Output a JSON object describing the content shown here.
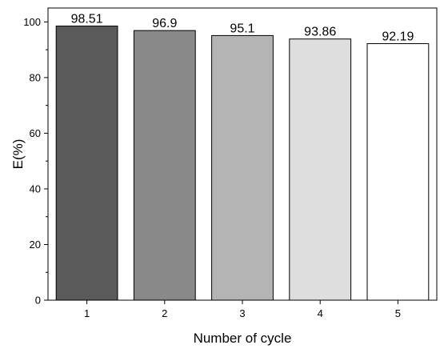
{
  "chart_data": {
    "type": "bar",
    "categories": [
      "1",
      "2",
      "3",
      "4",
      "5"
    ],
    "values": [
      98.51,
      96.9,
      95.1,
      93.86,
      92.19
    ],
    "data_labels": [
      "98.51",
      "96.9",
      "95.1",
      "93.86",
      "92.19"
    ],
    "bar_colors": [
      "#5a5a5a",
      "#898989",
      "#b4b4b4",
      "#dedede",
      "#ffffff"
    ],
    "title": "",
    "xlabel": "Number of cycle",
    "ylabel": "E(%)",
    "ylim": [
      0,
      105
    ],
    "yticks": [
      0,
      20,
      40,
      60,
      80,
      100
    ],
    "grid": false,
    "legend": "none"
  }
}
